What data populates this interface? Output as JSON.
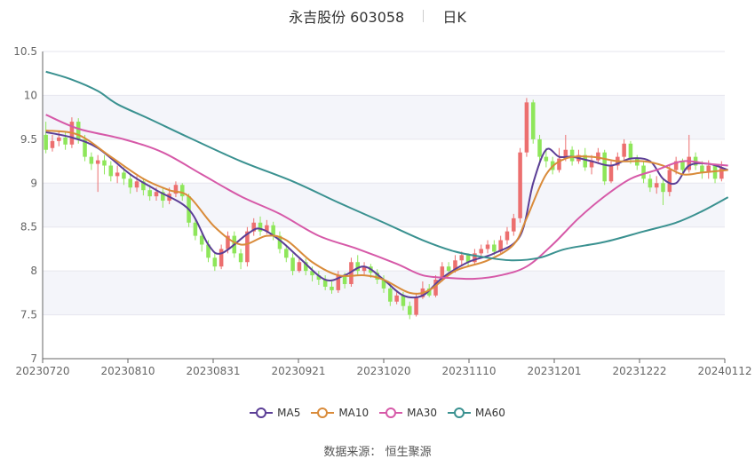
{
  "header": {
    "title": "永吉股份 603058",
    "period": "日K"
  },
  "footer": {
    "source_label": "数据来源：",
    "source_name": "恒生聚源"
  },
  "colors": {
    "up": "#ec6f6f",
    "down": "#8ee65a",
    "MA5": "#5b3e96",
    "MA10": "#d98b3a",
    "MA30": "#d659a8",
    "MA60": "#3a9190"
  },
  "chart_data": {
    "type": "candlestick",
    "ylim": [
      7,
      10.5
    ],
    "y_ticks": [
      "7",
      "7.5",
      "8",
      "8.5",
      "9",
      "9.5",
      "10",
      "10.5"
    ],
    "x_ticks": [
      "20230720",
      "20230810",
      "20230831",
      "20230921",
      "20231020",
      "20231110",
      "20231201",
      "20231222",
      "20240112"
    ],
    "legend": [
      "MA5",
      "MA10",
      "MA30",
      "MA60"
    ],
    "candles": [
      [
        9.55,
        9.38,
        9.7,
        9.34
      ],
      [
        9.4,
        9.48,
        9.55,
        9.36
      ],
      [
        9.48,
        9.52,
        9.6,
        9.42
      ],
      [
        9.52,
        9.44,
        9.58,
        9.38
      ],
      [
        9.44,
        9.7,
        9.75,
        9.4
      ],
      [
        9.7,
        9.5,
        9.74,
        9.45
      ],
      [
        9.5,
        9.3,
        9.55,
        9.25
      ],
      [
        9.3,
        9.22,
        9.35,
        9.15
      ],
      [
        9.22,
        9.26,
        9.32,
        8.9
      ],
      [
        9.26,
        9.2,
        9.32,
        9.1
      ],
      [
        9.2,
        9.08,
        9.25,
        9.02
      ],
      [
        9.08,
        9.12,
        9.2,
        9.0
      ],
      [
        9.12,
        9.05,
        9.18,
        8.98
      ],
      [
        9.05,
        8.95,
        9.1,
        8.88
      ],
      [
        8.95,
        9.02,
        9.08,
        8.9
      ],
      [
        9.02,
        8.92,
        9.06,
        8.86
      ],
      [
        8.92,
        8.85,
        8.98,
        8.8
      ],
      [
        8.85,
        8.9,
        8.95,
        8.8
      ],
      [
        8.9,
        8.8,
        8.94,
        8.72
      ],
      [
        8.8,
        8.88,
        8.95,
        8.76
      ],
      [
        8.88,
        8.98,
        9.02,
        8.84
      ],
      [
        8.98,
        8.85,
        9.0,
        8.8
      ],
      [
        8.85,
        8.55,
        8.88,
        8.5
      ],
      [
        8.55,
        8.4,
        8.6,
        8.35
      ],
      [
        8.4,
        8.3,
        8.45,
        8.22
      ],
      [
        8.3,
        8.15,
        8.35,
        8.1
      ],
      [
        8.15,
        8.05,
        8.2,
        8.0
      ],
      [
        8.05,
        8.25,
        8.3,
        8.02
      ],
      [
        8.25,
        8.4,
        8.45,
        8.2
      ],
      [
        8.4,
        8.2,
        8.45,
        8.15
      ],
      [
        8.2,
        8.1,
        8.25,
        8.02
      ],
      [
        8.1,
        8.45,
        8.5,
        8.05
      ],
      [
        8.45,
        8.55,
        8.6,
        8.4
      ],
      [
        8.55,
        8.45,
        8.62,
        8.4
      ],
      [
        8.45,
        8.52,
        8.58,
        8.42
      ],
      [
        8.52,
        8.4,
        8.56,
        8.35
      ],
      [
        8.4,
        8.25,
        8.45,
        8.2
      ],
      [
        8.25,
        8.15,
        8.3,
        8.1
      ],
      [
        8.15,
        8.0,
        8.2,
        7.95
      ],
      [
        8.0,
        8.1,
        8.15,
        7.98
      ],
      [
        8.1,
        8.0,
        8.14,
        7.95
      ],
      [
        8.0,
        7.95,
        8.05,
        7.88
      ],
      [
        7.95,
        7.9,
        8.0,
        7.84
      ],
      [
        7.9,
        7.82,
        7.95,
        7.78
      ],
      [
        7.82,
        7.78,
        7.88,
        7.74
      ],
      [
        7.78,
        7.95,
        8.0,
        7.75
      ],
      [
        7.95,
        7.85,
        7.98,
        7.8
      ],
      [
        7.85,
        8.1,
        8.15,
        7.82
      ],
      [
        8.1,
        8.0,
        8.18,
        7.95
      ],
      [
        8.0,
        8.05,
        8.1,
        7.96
      ],
      [
        8.05,
        7.98,
        8.08,
        7.92
      ],
      [
        7.98,
        7.9,
        8.02,
        7.85
      ],
      [
        7.9,
        7.8,
        7.95,
        7.75
      ],
      [
        7.8,
        7.65,
        7.85,
        7.6
      ],
      [
        7.65,
        7.72,
        7.78,
        7.62
      ],
      [
        7.72,
        7.6,
        7.76,
        7.55
      ],
      [
        7.6,
        7.5,
        7.65,
        7.45
      ],
      [
        7.5,
        7.7,
        7.75,
        7.48
      ],
      [
        7.7,
        7.8,
        7.88,
        7.68
      ],
      [
        7.8,
        7.72,
        7.85,
        7.7
      ],
      [
        7.72,
        7.9,
        7.95,
        7.7
      ],
      [
        7.9,
        8.05,
        8.1,
        7.88
      ],
      [
        8.05,
        8.0,
        8.1,
        7.95
      ],
      [
        8.0,
        8.12,
        8.18,
        7.98
      ],
      [
        8.12,
        8.18,
        8.22,
        8.05
      ],
      [
        8.18,
        8.1,
        8.2,
        8.05
      ],
      [
        8.1,
        8.2,
        8.25,
        8.08
      ],
      [
        8.2,
        8.25,
        8.3,
        8.15
      ],
      [
        8.25,
        8.3,
        8.35,
        8.2
      ],
      [
        8.3,
        8.22,
        8.35,
        8.18
      ],
      [
        8.22,
        8.35,
        8.4,
        8.2
      ],
      [
        8.35,
        8.45,
        8.5,
        8.3
      ],
      [
        8.45,
        8.6,
        8.65,
        8.4
      ],
      [
        8.6,
        9.35,
        9.4,
        8.55
      ],
      [
        9.35,
        9.92,
        9.97,
        9.3
      ],
      [
        9.92,
        9.5,
        9.95,
        9.45
      ],
      [
        9.5,
        9.3,
        9.55,
        9.2
      ],
      [
        9.3,
        9.25,
        9.4,
        9.18
      ],
      [
        9.25,
        9.15,
        9.3,
        9.1
      ],
      [
        9.15,
        9.28,
        9.4,
        9.12
      ],
      [
        9.28,
        9.38,
        9.55,
        9.25
      ],
      [
        9.38,
        9.25,
        9.42,
        9.2
      ],
      [
        9.25,
        9.32,
        9.38,
        9.22
      ],
      [
        9.32,
        9.18,
        9.4,
        9.14
      ],
      [
        9.18,
        9.26,
        9.32,
        9.1
      ],
      [
        9.26,
        9.35,
        9.4,
        9.22
      ],
      [
        9.35,
        9.02,
        9.38,
        8.98
      ],
      [
        9.02,
        9.2,
        9.25,
        9.0
      ],
      [
        9.2,
        9.3,
        9.35,
        9.15
      ],
      [
        9.3,
        9.45,
        9.5,
        9.25
      ],
      [
        9.45,
        9.28,
        9.48,
        9.22
      ],
      [
        9.28,
        9.2,
        9.32,
        9.15
      ],
      [
        9.2,
        9.05,
        9.25,
        9.0
      ],
      [
        9.05,
        8.95,
        9.1,
        8.9
      ],
      [
        8.95,
        9.0,
        9.08,
        8.88
      ],
      [
        9.0,
        8.9,
        9.05,
        8.75
      ],
      [
        8.9,
        9.15,
        9.2,
        8.85
      ],
      [
        9.15,
        9.25,
        9.3,
        9.1
      ],
      [
        9.25,
        9.15,
        9.28,
        9.1
      ],
      [
        9.15,
        9.3,
        9.55,
        9.12
      ],
      [
        9.3,
        9.2,
        9.35,
        9.15
      ],
      [
        9.2,
        9.12,
        9.25,
        9.05
      ],
      [
        9.12,
        9.2,
        9.26,
        9.05
      ],
      [
        9.2,
        9.05,
        9.22,
        9.0
      ],
      [
        9.05,
        9.18,
        9.25,
        9.02
      ]
    ],
    "ma_lines": {
      "MA5": [
        [
          0,
          9.58
        ],
        [
          4,
          9.52
        ],
        [
          8,
          9.4
        ],
        [
          13,
          9.1
        ],
        [
          17,
          8.92
        ],
        [
          22,
          8.7
        ],
        [
          25,
          8.3
        ],
        [
          27,
          8.2
        ],
        [
          31,
          8.42
        ],
        [
          33,
          8.48
        ],
        [
          36,
          8.35
        ],
        [
          39,
          8.15
        ],
        [
          43,
          7.9
        ],
        [
          46,
          7.95
        ],
        [
          49,
          8.05
        ],
        [
          52,
          7.9
        ],
        [
          55,
          7.72
        ],
        [
          58,
          7.72
        ],
        [
          61,
          7.92
        ],
        [
          65,
          8.1
        ],
        [
          69,
          8.2
        ],
        [
          73,
          8.4
        ],
        [
          75,
          9.0
        ],
        [
          77,
          9.38
        ],
        [
          79,
          9.3
        ],
        [
          81,
          9.3
        ],
        [
          84,
          9.25
        ],
        [
          87,
          9.2
        ],
        [
          90,
          9.28
        ],
        [
          93,
          9.25
        ],
        [
          95,
          9.05
        ],
        [
          97,
          9.0
        ],
        [
          99,
          9.2
        ],
        [
          102,
          9.22
        ],
        [
          105,
          9.15
        ]
      ],
      "MA10": [
        [
          0,
          9.6
        ],
        [
          5,
          9.55
        ],
        [
          10,
          9.3
        ],
        [
          15,
          9.05
        ],
        [
          19,
          8.92
        ],
        [
          22,
          8.85
        ],
        [
          26,
          8.5
        ],
        [
          30,
          8.3
        ],
        [
          34,
          8.4
        ],
        [
          37,
          8.35
        ],
        [
          41,
          8.1
        ],
        [
          45,
          7.95
        ],
        [
          49,
          7.95
        ],
        [
          52,
          7.9
        ],
        [
          56,
          7.75
        ],
        [
          59,
          7.78
        ],
        [
          63,
          8.0
        ],
        [
          68,
          8.12
        ],
        [
          72,
          8.3
        ],
        [
          74,
          8.6
        ],
        [
          77,
          9.1
        ],
        [
          80,
          9.28
        ],
        [
          84,
          9.3
        ],
        [
          88,
          9.25
        ],
        [
          92,
          9.25
        ],
        [
          95,
          9.2
        ],
        [
          98,
          9.1
        ],
        [
          101,
          9.12
        ],
        [
          105,
          9.15
        ]
      ],
      "MA30": [
        [
          0,
          9.78
        ],
        [
          5,
          9.62
        ],
        [
          12,
          9.5
        ],
        [
          18,
          9.35
        ],
        [
          24,
          9.1
        ],
        [
          30,
          8.85
        ],
        [
          36,
          8.65
        ],
        [
          42,
          8.4
        ],
        [
          48,
          8.25
        ],
        [
          54,
          8.08
        ],
        [
          58,
          7.95
        ],
        [
          62,
          7.92
        ],
        [
          66,
          7.91
        ],
        [
          70,
          7.95
        ],
        [
          74,
          8.05
        ],
        [
          78,
          8.3
        ],
        [
          82,
          8.6
        ],
        [
          86,
          8.85
        ],
        [
          90,
          9.05
        ],
        [
          94,
          9.15
        ],
        [
          98,
          9.25
        ],
        [
          102,
          9.22
        ],
        [
          105,
          9.2
        ]
      ],
      "MA60": [
        [
          0,
          10.27
        ],
        [
          4,
          10.18
        ],
        [
          8,
          10.05
        ],
        [
          11,
          9.9
        ],
        [
          16,
          9.73
        ],
        [
          22,
          9.52
        ],
        [
          30,
          9.25
        ],
        [
          38,
          9.02
        ],
        [
          45,
          8.78
        ],
        [
          52,
          8.55
        ],
        [
          58,
          8.35
        ],
        [
          63,
          8.22
        ],
        [
          68,
          8.15
        ],
        [
          72,
          8.12
        ],
        [
          76,
          8.15
        ],
        [
          80,
          8.25
        ],
        [
          86,
          8.33
        ],
        [
          92,
          8.45
        ],
        [
          97,
          8.55
        ],
        [
          101,
          8.68
        ],
        [
          105,
          8.84
        ]
      ]
    }
  }
}
